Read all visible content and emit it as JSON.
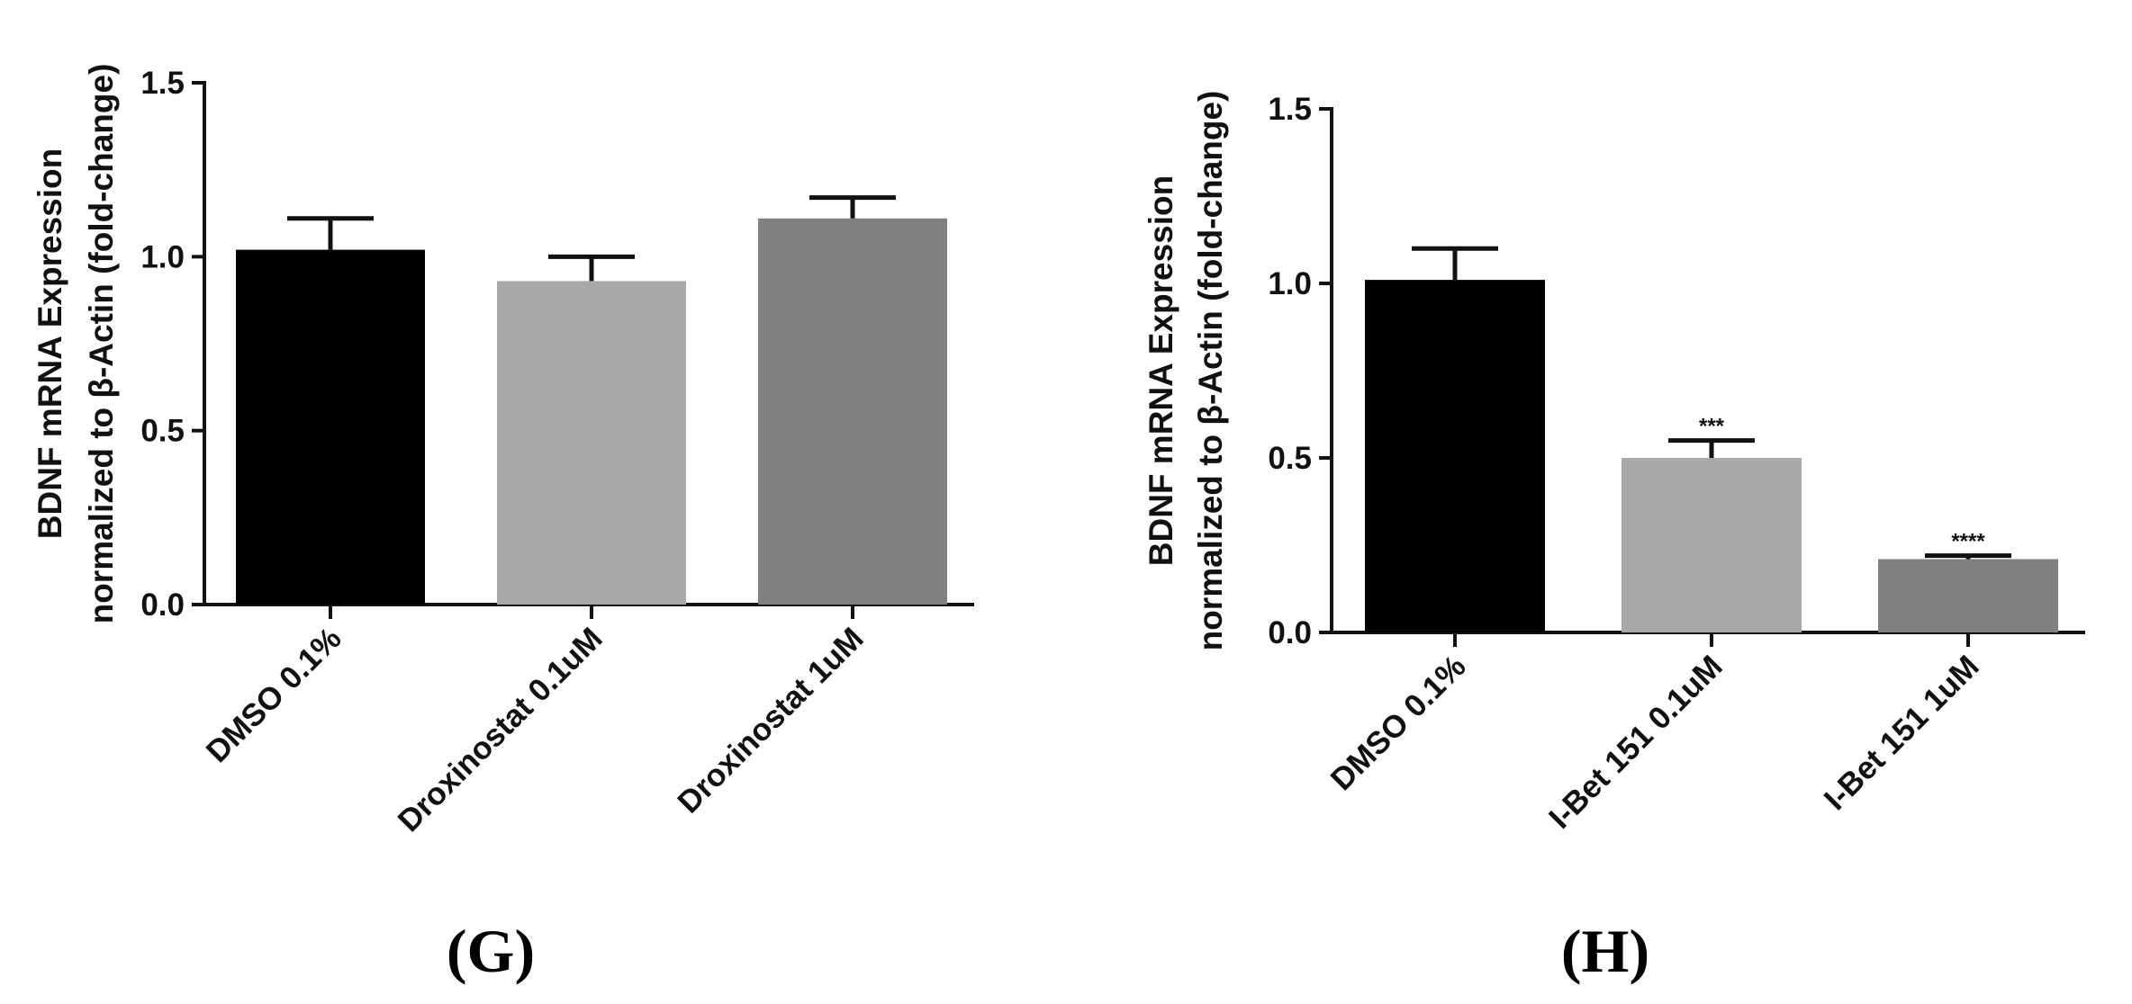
{
  "figure": {
    "panels": [
      "(G)",
      "(H)"
    ]
  },
  "chart_data": [
    {
      "type": "bar",
      "panel_label": "(G)",
      "ylabel_lines": [
        "BDNF mRNA Expression",
        "normalized to β-Actin (fold-change)"
      ],
      "categories": [
        "DMSO 0.1%",
        "Droxinostat 0.1uM",
        "Droxinostat 1uM"
      ],
      "values": [
        1.02,
        0.93,
        1.11
      ],
      "errors": [
        0.09,
        0.07,
        0.06
      ],
      "annotations": [
        "",
        "",
        ""
      ],
      "bar_colors": [
        "#000000",
        "#a9a9a9",
        "#808080"
      ],
      "ylim": [
        0,
        1.5
      ],
      "yticks": [
        "0.0",
        "0.5",
        "1.0",
        "1.5"
      ],
      "ytick_values": [
        0,
        0.5,
        1.0,
        1.5
      ],
      "grid": false
    },
    {
      "type": "bar",
      "panel_label": "(H)",
      "ylabel_lines": [
        "BDNF mRNA Expression",
        "normalized to β-Actin (fold-change)"
      ],
      "categories": [
        "DMSO 0.1%",
        "I-Bet 151 0.1uM",
        "I-Bet 151 1uM"
      ],
      "values": [
        1.01,
        0.5,
        0.21
      ],
      "errors": [
        0.09,
        0.05,
        0.01
      ],
      "annotations": [
        "",
        "***",
        "****"
      ],
      "bar_colors": [
        "#000000",
        "#a9a9a9",
        "#808080"
      ],
      "ylim": [
        0,
        1.5
      ],
      "yticks": [
        "0.0",
        "0.5",
        "1.0",
        "1.5"
      ],
      "ytick_values": [
        0,
        0.5,
        1.0,
        1.5
      ],
      "grid": false
    }
  ]
}
